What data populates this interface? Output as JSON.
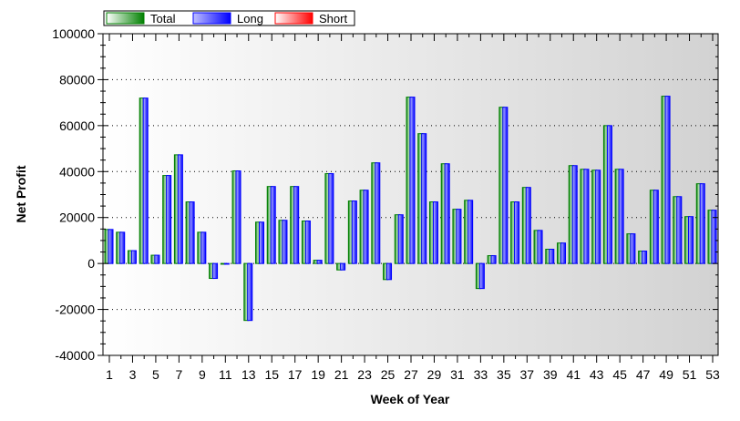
{
  "chart_data": {
    "type": "bar",
    "title": "",
    "xlabel": "Week of Year",
    "ylabel": "Net Profit",
    "ylim": [
      -40000,
      100000
    ],
    "yticks": [
      "-40000",
      "-20000",
      "0",
      "20000",
      "40000",
      "60000",
      "80000",
      "100000"
    ],
    "grid": true,
    "legend_position": "top-left",
    "categories": [
      1,
      2,
      3,
      4,
      5,
      6,
      7,
      8,
      9,
      10,
      11,
      12,
      13,
      14,
      15,
      16,
      17,
      18,
      19,
      20,
      21,
      22,
      23,
      24,
      25,
      26,
      27,
      28,
      29,
      30,
      31,
      32,
      33,
      34,
      35,
      36,
      37,
      38,
      39,
      40,
      41,
      42,
      43,
      44,
      45,
      46,
      47,
      48,
      49,
      50,
      51,
      52,
      53
    ],
    "series": [
      {
        "name": "Total",
        "color": "#008000",
        "values": [
          14800,
          13600,
          5600,
          72000,
          3600,
          38300,
          47300,
          26800,
          13600,
          -6500,
          0,
          40300,
          -24800,
          18000,
          33500,
          18800,
          33500,
          18500,
          1400,
          39100,
          -2800,
          27200,
          31900,
          43800,
          -7000,
          21200,
          72400,
          56500,
          26800,
          43400,
          23600,
          27500,
          -10900,
          3400,
          68000,
          26800,
          33100,
          14400,
          6200,
          8900,
          42600,
          41000,
          40600,
          60000,
          41000,
          12900,
          5400,
          31900,
          72800,
          29100,
          20400,
          34700,
          23200
        ]
      },
      {
        "name": "Long",
        "color": "#0000ff",
        "values": [
          14800,
          13600,
          5600,
          72000,
          3600,
          38300,
          47300,
          26800,
          13600,
          -6500,
          0,
          40300,
          -24800,
          18000,
          33500,
          18800,
          33500,
          18500,
          1400,
          39100,
          -2800,
          27200,
          31900,
          43800,
          -7000,
          21200,
          72400,
          56500,
          26800,
          43400,
          23600,
          27500,
          -10900,
          3400,
          68000,
          26800,
          33100,
          14400,
          6200,
          8900,
          42600,
          41000,
          40600,
          60000,
          41000,
          12900,
          5400,
          31900,
          72800,
          29100,
          20400,
          34700,
          23200
        ]
      },
      {
        "name": "Short",
        "color": "#ff0000",
        "values": [
          0,
          0,
          0,
          0,
          0,
          0,
          0,
          0,
          0,
          0,
          0,
          0,
          0,
          0,
          0,
          0,
          0,
          0,
          0,
          0,
          0,
          0,
          0,
          0,
          0,
          0,
          0,
          0,
          0,
          0,
          0,
          0,
          0,
          0,
          0,
          0,
          0,
          0,
          0,
          0,
          0,
          0,
          0,
          0,
          0,
          0,
          0,
          0,
          0,
          0,
          0,
          0,
          0
        ]
      }
    ]
  }
}
